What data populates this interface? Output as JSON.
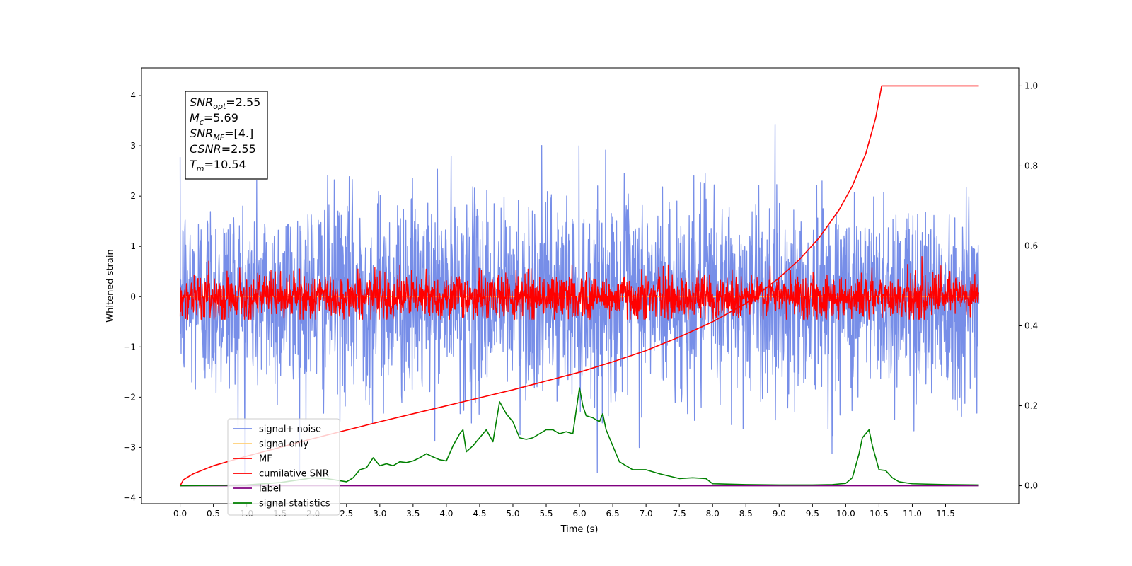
{
  "chart_data": {
    "type": "line",
    "xlabel": "Time (s)",
    "ylabel": "Whitened strain",
    "xlim": [
      -0.58,
      12.6
    ],
    "ylim_left": [
      -4.12,
      4.55
    ],
    "ylim_right": [
      -0.045,
      1.045
    ],
    "x_ticks": [
      0.0,
      0.5,
      1.0,
      1.5,
      2.0,
      2.5,
      3.0,
      3.5,
      4.0,
      4.5,
      5.0,
      5.5,
      6.0,
      6.5,
      7.0,
      7.5,
      8.0,
      8.5,
      9.0,
      9.5,
      10.0,
      10.5,
      11.0,
      11.5
    ],
    "x_tick_labels": [
      "0.0",
      "0.5",
      "1.0",
      "1.5",
      "2.0",
      "2.5",
      "3.0",
      "3.5",
      "4.0",
      "4.5",
      "5.0",
      "5.5",
      "6.0",
      "6.5",
      "7.0",
      "7.5",
      "8.0",
      "8.5",
      "9.0",
      "9.5",
      "10.0",
      "10.5",
      "11.0",
      "11.5"
    ],
    "y_left_ticks": [
      -4,
      -3,
      -2,
      -1,
      0,
      1,
      2,
      3,
      4
    ],
    "y_left_tick_labels": [
      "−4",
      "−3",
      "−2",
      "−1",
      "0",
      "1",
      "2",
      "3",
      "4"
    ],
    "y_right_ticks": [
      0.0,
      0.2,
      0.4,
      0.6,
      0.8,
      1.0
    ],
    "y_right_tick_labels": [
      "0.0",
      "0.2",
      "0.4",
      "0.6",
      "0.8",
      "1.0"
    ],
    "grid": false,
    "legend_position": "lower-left",
    "annotation_box": {
      "position": "top-left",
      "lines": [
        {
          "base": "SNR",
          "sub": "opt",
          "value": "=2.55"
        },
        {
          "base": "M",
          "sub": "c",
          "value": "=5.69"
        },
        {
          "base": "SNR",
          "sub": "MF",
          "value": "=[4.]"
        },
        {
          "base": "CSNR",
          "sub": "",
          "value": "=2.55"
        },
        {
          "base": "T",
          "sub": "m",
          "value": "=10.54"
        }
      ]
    },
    "series": [
      {
        "name": "signal+ noise",
        "color": "#778ee8",
        "axis": "left",
        "generated_noise": {
          "x_start": 0.0,
          "x_end": 12.0,
          "points": 2400,
          "mean": 0.0,
          "std": 1.0,
          "clip": [
            -3.5,
            4.2
          ]
        }
      },
      {
        "name": "signal only",
        "color": "#ffcf75",
        "axis": "left",
        "x": [
          0.0,
          12.0
        ],
        "y": [
          0.0,
          0.0
        ]
      },
      {
        "name": "MF",
        "color": "#ff0000",
        "axis": "left",
        "generated_noise": {
          "x_start": 0.0,
          "x_end": 12.0,
          "points": 2400,
          "mean": 0.0,
          "std": 0.22,
          "clip": [
            -0.45,
            1.0
          ]
        }
      },
      {
        "name": "cumilative SNR",
        "color": "#ff0000",
        "axis": "right",
        "x": [
          0.0,
          0.05,
          0.2,
          0.5,
          1.0,
          1.5,
          2.0,
          2.5,
          3.0,
          3.5,
          4.0,
          4.5,
          5.0,
          5.5,
          6.0,
          6.5,
          7.0,
          7.5,
          8.0,
          8.5,
          9.0,
          9.3,
          9.6,
          9.9,
          10.1,
          10.3,
          10.45,
          10.54,
          11.0,
          11.5,
          12.0
        ],
        "y": [
          0.0,
          0.015,
          0.03,
          0.05,
          0.074,
          0.096,
          0.118,
          0.139,
          0.16,
          0.18,
          0.2,
          0.22,
          0.24,
          0.262,
          0.284,
          0.31,
          0.338,
          0.372,
          0.41,
          0.456,
          0.52,
          0.565,
          0.62,
          0.69,
          0.75,
          0.83,
          0.92,
          1.0,
          1.0,
          1.0,
          1.0
        ]
      },
      {
        "name": "label",
        "color": "#800080",
        "axis": "right",
        "x": [
          0.0,
          12.0
        ],
        "y": [
          0.0,
          0.0
        ]
      },
      {
        "name": "signal statistics",
        "color": "#008000",
        "axis": "right",
        "x": [
          0.0,
          1.0,
          1.5,
          1.8,
          2.0,
          2.2,
          2.5,
          2.6,
          2.7,
          2.8,
          2.9,
          3.0,
          3.1,
          3.2,
          3.3,
          3.4,
          3.5,
          3.6,
          3.7,
          3.8,
          3.9,
          4.0,
          4.1,
          4.2,
          4.25,
          4.3,
          4.4,
          4.5,
          4.6,
          4.7,
          4.8,
          4.9,
          5.0,
          5.1,
          5.2,
          5.3,
          5.4,
          5.5,
          5.6,
          5.7,
          5.8,
          5.9,
          6.0,
          6.05,
          6.1,
          6.2,
          6.3,
          6.35,
          6.4,
          6.5,
          6.6,
          6.7,
          6.8,
          7.0,
          7.2,
          7.5,
          7.7,
          7.9,
          8.0,
          8.5,
          9.0,
          9.5,
          9.8,
          10.0,
          10.1,
          10.2,
          10.25,
          10.3,
          10.35,
          10.4,
          10.5,
          10.6,
          10.7,
          10.8,
          11.0,
          11.5,
          12.0
        ],
        "y": [
          0.0,
          0.002,
          0.008,
          0.015,
          0.02,
          0.018,
          0.01,
          0.02,
          0.04,
          0.045,
          0.07,
          0.05,
          0.055,
          0.05,
          0.06,
          0.058,
          0.062,
          0.07,
          0.08,
          0.072,
          0.065,
          0.062,
          0.1,
          0.13,
          0.14,
          0.085,
          0.1,
          0.12,
          0.14,
          0.11,
          0.21,
          0.18,
          0.16,
          0.12,
          0.116,
          0.12,
          0.13,
          0.14,
          0.14,
          0.13,
          0.135,
          0.13,
          0.245,
          0.2,
          0.175,
          0.17,
          0.16,
          0.18,
          0.14,
          0.1,
          0.06,
          0.05,
          0.04,
          0.04,
          0.03,
          0.018,
          0.02,
          0.018,
          0.005,
          0.003,
          0.002,
          0.002,
          0.003,
          0.006,
          0.02,
          0.08,
          0.12,
          0.13,
          0.14,
          0.1,
          0.04,
          0.038,
          0.02,
          0.01,
          0.005,
          0.003,
          0.002
        ]
      }
    ]
  }
}
